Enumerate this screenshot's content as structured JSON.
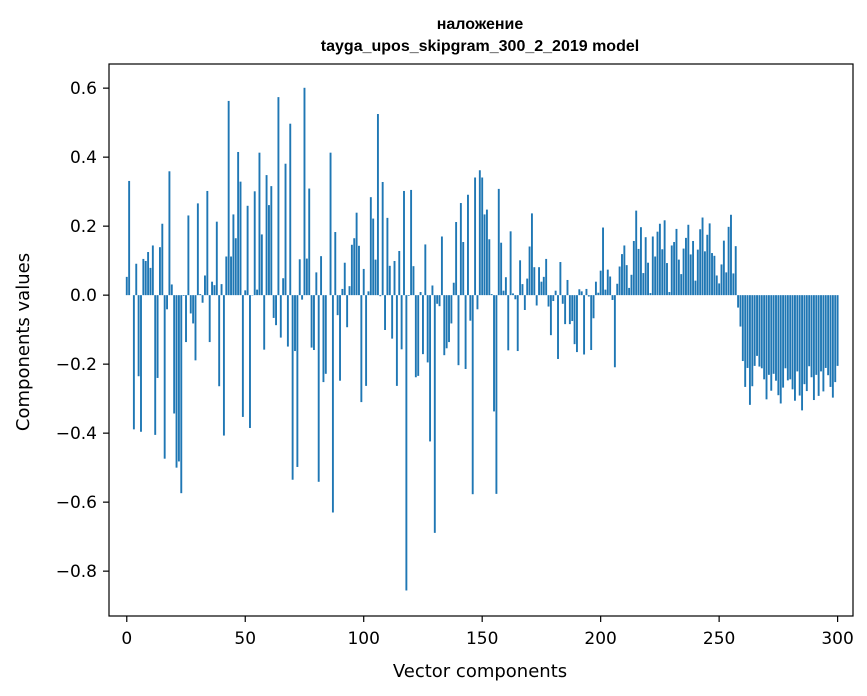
{
  "chart_data": {
    "type": "bar",
    "title": "наложение",
    "subtitle": "tayga_upos_skipgram_300_2_2019 model",
    "xlabel": "Vector components",
    "ylabel": "Components values",
    "xlim": [
      -7.5,
      306.5
    ],
    "ylim": [
      -0.93,
      0.67
    ],
    "xticks": [
      0,
      50,
      100,
      150,
      200,
      250,
      300
    ],
    "xtick_labels": [
      "0",
      "50",
      "100",
      "150",
      "200",
      "250",
      "300"
    ],
    "yticks": [
      -0.8,
      -0.6,
      -0.4,
      -0.2,
      0.0,
      0.2,
      0.4,
      0.6
    ],
    "ytick_labels": [
      "−0.8",
      "−0.6",
      "−0.4",
      "−0.2",
      "0.0",
      "0.2",
      "0.4",
      "0.6"
    ],
    "bar_color": "#1f77b4",
    "values": [
      0.053,
      0.331,
      0.0,
      -0.389,
      0.091,
      -0.235,
      -0.396,
      0.105,
      0.099,
      0.125,
      0.079,
      0.144,
      -0.405,
      -0.24,
      0.139,
      0.207,
      -0.474,
      -0.041,
      0.359,
      0.031,
      -0.343,
      -0.5,
      -0.482,
      -0.574,
      -0.002,
      -0.136,
      0.231,
      -0.053,
      -0.082,
      -0.189,
      0.266,
      0.003,
      -0.022,
      0.057,
      0.302,
      -0.136,
      0.039,
      0.029,
      0.213,
      -0.264,
      0.032,
      -0.407,
      0.112,
      0.563,
      0.112,
      0.234,
      0.165,
      0.415,
      0.329,
      -0.353,
      0.014,
      0.259,
      -0.385,
      -0.001,
      0.301,
      0.016,
      0.413,
      0.176,
      -0.158,
      0.348,
      0.261,
      0.316,
      -0.066,
      -0.087,
      0.574,
      -0.123,
      0.049,
      0.381,
      -0.149,
      0.497,
      -0.535,
      -0.162,
      -0.498,
      0.104,
      -0.013,
      0.601,
      0.106,
      0.309,
      -0.152,
      -0.159,
      0.066,
      -0.541,
      0.113,
      -0.252,
      -0.228,
      0.0,
      0.413,
      -0.63,
      0.183,
      -0.058,
      -0.248,
      0.018,
      0.094,
      -0.093,
      0.026,
      0.146,
      0.165,
      0.239,
      0.143,
      -0.31,
      0.076,
      -0.263,
      0.011,
      0.284,
      0.222,
      0.103,
      0.525,
      -0.003,
      0.328,
      -0.101,
      0.224,
      0.085,
      -0.126,
      0.099,
      -0.263,
      0.128,
      -0.157,
      0.302,
      -0.856,
      -0.002,
      0.305,
      0.084,
      -0.238,
      -0.234,
      0.009,
      -0.171,
      0.147,
      -0.195,
      -0.424,
      0.028,
      -0.689,
      -0.025,
      -0.032,
      0.17,
      -0.174,
      -0.154,
      -0.136,
      -0.082,
      0.036,
      0.212,
      -0.203,
      0.267,
      0.154,
      -0.214,
      0.291,
      -0.074,
      -0.577,
      0.341,
      -0.041,
      0.362,
      0.341,
      0.234,
      0.248,
      0.162,
      0.003,
      -0.337,
      -0.576,
      0.308,
      0.152,
      0.013,
      0.052,
      -0.16,
      0.185,
      0.005,
      -0.012,
      -0.162,
      0.101,
      0.032,
      -0.043,
      0.048,
      0.141,
      0.237,
      0.081,
      -0.03,
      0.081,
      0.039,
      0.053,
      0.105,
      -0.033,
      -0.116,
      -0.017,
      0.013,
      -0.185,
      0.096,
      -0.025,
      -0.084,
      0.044,
      -0.084,
      -0.075,
      -0.142,
      -0.165,
      0.017,
      0.011,
      -0.172,
      0.018,
      -0.004,
      -0.159,
      -0.067,
      0.039,
      0.007,
      0.071,
      0.196,
      0.016,
      0.074,
      0.054,
      -0.014,
      -0.209,
      0.033,
      0.083,
      0.119,
      0.144,
      0.087,
      0.021,
      0.059,
      0.157,
      0.245,
      0.134,
      0.197,
      0.064,
      0.168,
      0.094,
      0.006,
      0.17,
      0.112,
      0.184,
      0.207,
      0.133,
      0.217,
      0.093,
      0.009,
      0.144,
      0.154,
      0.192,
      0.103,
      0.061,
      0.135,
      0.166,
      0.204,
      0.118,
      0.157,
      0.042,
      0.132,
      0.191,
      0.225,
      0.127,
      0.175,
      0.208,
      0.122,
      0.114,
      0.057,
      0.034,
      0.089,
      0.158,
      0.066,
      0.198,
      0.233,
      0.063,
      0.142,
      -0.036,
      -0.091,
      -0.191,
      -0.266,
      -0.211,
      -0.318,
      -0.264,
      -0.205,
      -0.176,
      -0.207,
      -0.212,
      -0.244,
      -0.302,
      -0.231,
      -0.277,
      -0.228,
      -0.248,
      -0.29,
      -0.314,
      -0.268,
      -0.212,
      -0.247,
      -0.244,
      -0.273,
      -0.306,
      -0.221,
      -0.291,
      -0.334,
      -0.258,
      -0.278,
      -0.206,
      -0.238,
      -0.304,
      -0.231,
      -0.292,
      -0.221,
      -0.279,
      -0.211,
      -0.232,
      -0.266,
      -0.297,
      -0.252,
      -0.205
    ]
  }
}
